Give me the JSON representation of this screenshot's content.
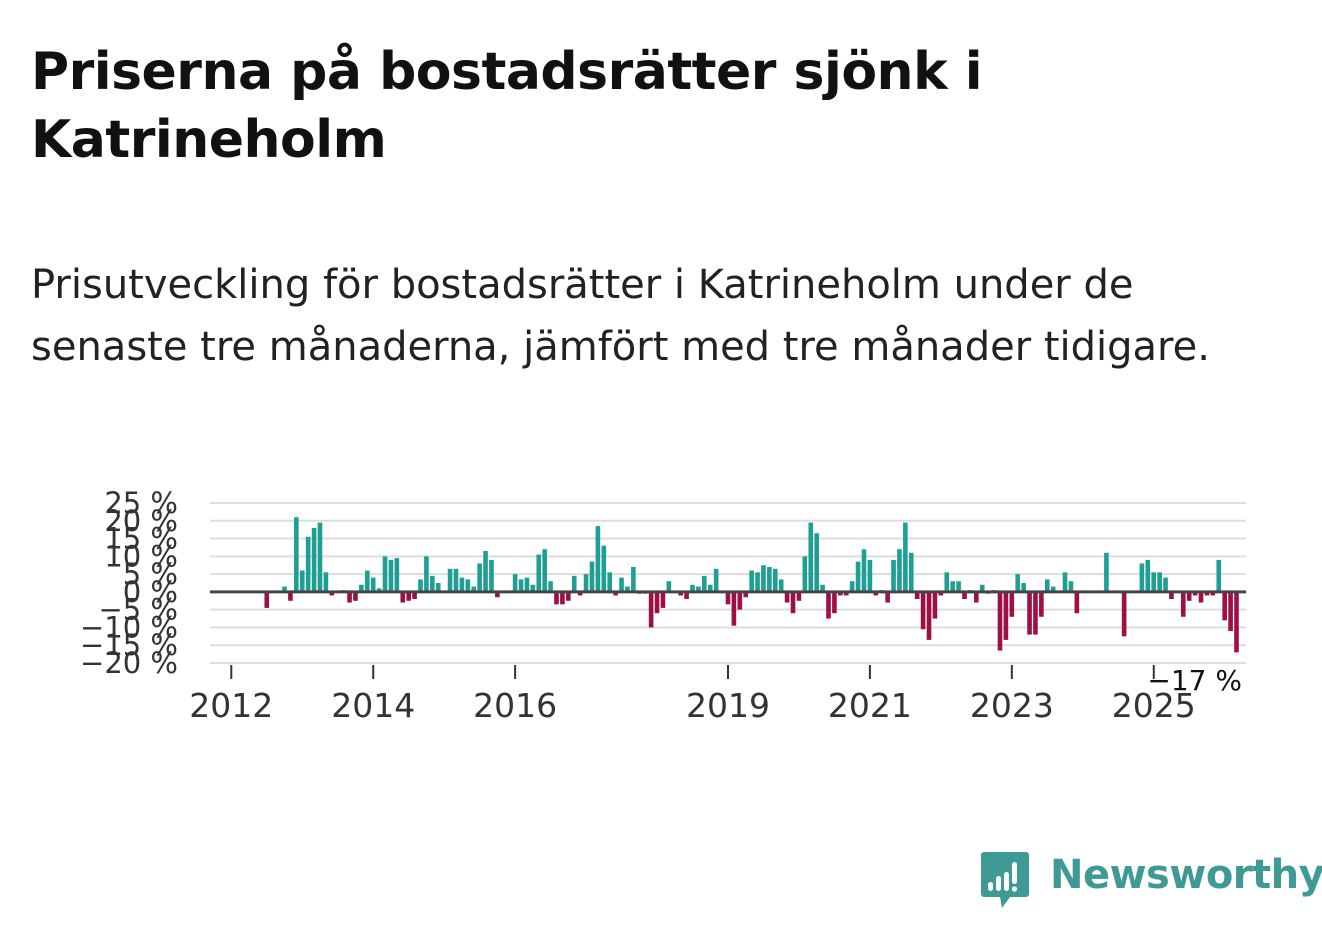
{
  "header": {
    "title": "Priserna på bostadsrätter sjönk i Katrineholm",
    "subtitle": "Prisutveckling för bostadsrätter i Katrineholm under de senaste tre månaderna, jämfört med tre månader tidigare."
  },
  "brand": {
    "name": "Newsworthy",
    "color": "#3f9a96",
    "icon": "newsworthy-logo-icon"
  },
  "colors": {
    "positive": "#1f9e93",
    "negative": "#9e0f45",
    "grid": "#dddddd",
    "zero": "#444444"
  },
  "chart_data": {
    "type": "bar",
    "title": "Priserna på bostadsrätter sjönk i Katrineholm",
    "ylim": [
      -20,
      25
    ],
    "yticks": [
      -20,
      -15,
      -10,
      -5,
      0,
      5,
      10,
      15,
      20,
      25
    ],
    "ytick_labels": [
      "−20 %",
      "−15 %",
      "−10 %",
      "−5 %",
      "0 %",
      "5 %",
      "10 %",
      "15 %",
      "20 %",
      "25 %"
    ],
    "xlim": [
      2011.7,
      2026.3
    ],
    "xticks": [
      2012,
      2014,
      2016,
      2019,
      2021,
      2023,
      2025
    ],
    "xtick_labels": [
      "2012",
      "2014",
      "2016",
      "2019",
      "2021",
      "2023",
      "2025"
    ],
    "last_value_label": "−17 %",
    "series": [
      {
        "name": "Prisutveckling",
        "start": 2012.0,
        "step": 0.08333,
        "values": [
          0,
          0,
          0,
          0,
          0,
          0,
          -4.5,
          0,
          0,
          1.5,
          -2.5,
          21,
          6,
          15.5,
          18,
          19.5,
          5.5,
          -1,
          0,
          0.5,
          -3,
          -2.5,
          2,
          6,
          4,
          1,
          10,
          9,
          9.5,
          -3,
          -2.5,
          -2,
          3.5,
          10,
          4.5,
          2.5,
          0,
          6.5,
          6.5,
          4,
          3.5,
          1.5,
          8,
          11.5,
          9,
          -1.5,
          0,
          0,
          5,
          3.5,
          4,
          2,
          10.5,
          12,
          3,
          -3.5,
          -3.5,
          -2.5,
          4.5,
          -1,
          5,
          8.5,
          18.5,
          13,
          5.5,
          -1,
          4,
          1.5,
          7,
          -0.5,
          -0.5,
          -10,
          -6,
          -4.5,
          3,
          0,
          -1,
          -2,
          2,
          1.5,
          4.5,
          2,
          6.5,
          0,
          -3.5,
          -9.5,
          -5,
          -1.5,
          6,
          5.5,
          7.5,
          7,
          6.5,
          3.5,
          -3,
          -6,
          -2.5,
          10,
          19.5,
          16.5,
          2,
          -7.5,
          -6,
          -1,
          -1,
          3,
          8.5,
          12,
          9,
          -1,
          0.5,
          -3,
          9,
          12,
          19.5,
          11,
          -2,
          -10.5,
          -13.5,
          -7.5,
          -1,
          5.5,
          3,
          3,
          -2,
          0.5,
          -3,
          2,
          -0.5,
          0.5,
          -16.5,
          -13.5,
          -7,
          5,
          2.5,
          -12,
          -12,
          -7,
          3.5,
          1.5,
          0,
          5.5,
          3,
          -6,
          0,
          0,
          0,
          0,
          11,
          0,
          0,
          -12.5,
          0,
          0,
          8,
          9,
          5.5,
          5.5,
          4,
          -2,
          0,
          -7,
          -2.5,
          -1,
          -3,
          -1,
          -1,
          9,
          -8,
          -11,
          -17
        ]
      }
    ]
  }
}
